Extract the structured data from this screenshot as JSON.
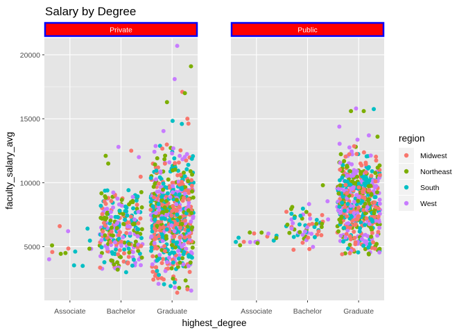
{
  "chart_data": {
    "type": "scatter",
    "title": "Salary by Degree",
    "xlabel": "highest_degree",
    "ylabel": "faculty_salary_avg",
    "categories": [
      "Associate",
      "Bachelor",
      "Graduate"
    ],
    "yticks": [
      "5000",
      "10000",
      "15000",
      "20000"
    ],
    "ylim": [
      800,
      21300
    ],
    "grid": true,
    "legend_title": "region",
    "legend_position": "right",
    "facet_fill": "#ff0000",
    "facet_border": "#0000ff",
    "panel_background": "#e5e5e5",
    "series": [
      {
        "name": "Midwest",
        "color": "#F8766D"
      },
      {
        "name": "Northeast",
        "color": "#7CAE00"
      },
      {
        "name": "South",
        "color": "#00BFC4"
      },
      {
        "name": "West",
        "color": "#C77CFF"
      }
    ],
    "facets": [
      {
        "label": "Private",
        "groups": [
          {
            "category": "Associate",
            "count": 12,
            "center": 5000,
            "spread": 700,
            "min": 3500,
            "max": 6600,
            "extremes": [
              [
                -0.2,
                6600,
                0
              ],
              [
                0.25,
                3500,
                2
              ],
              [
                -0.35,
                5100,
                1
              ]
            ]
          },
          {
            "category": "Bachelor",
            "count": 260,
            "center": 6500,
            "spread": 1700,
            "min": 3000,
            "max": 12800,
            "extremes": [
              [
                -0.3,
                12100,
                1
              ],
              [
                -0.05,
                12800,
                3
              ],
              [
                0.35,
                12000,
                3
              ],
              [
                0.2,
                12500,
                0
              ],
              [
                -0.25,
                11500,
                1
              ],
              [
                0.1,
                3000,
                2
              ]
            ]
          },
          {
            "category": "Graduate",
            "count": 620,
            "center": 7400,
            "spread": 2400,
            "min": 1400,
            "max": 20700,
            "extremes": [
              [
                0.1,
                20700,
                3
              ],
              [
                0.37,
                19100,
                1
              ],
              [
                0.05,
                18100,
                3
              ],
              [
                0.2,
                17100,
                0
              ],
              [
                -0.1,
                16300,
                1
              ],
              [
                0.1,
                1400,
                0
              ],
              [
                0.05,
                2200,
                2
              ],
              [
                0.25,
                17000,
                1
              ],
              [
                0.3,
                15000,
                0
              ]
            ]
          }
        ]
      },
      {
        "label": "Public",
        "groups": [
          {
            "category": "Associate",
            "count": 14,
            "center": 5600,
            "spread": 400,
            "min": 4800,
            "max": 6200,
            "extremes": [
              [
                -0.35,
                5700,
                2
              ],
              [
                0.1,
                6100,
                1
              ]
            ]
          },
          {
            "category": "Bachelor",
            "count": 60,
            "center": 6600,
            "spread": 900,
            "min": 4700,
            "max": 9800,
            "extremes": [
              [
                0.3,
                9800,
                1
              ],
              [
                -0.3,
                8100,
                1
              ]
            ]
          },
          {
            "category": "Graduate",
            "count": 560,
            "center": 8300,
            "spread": 1900,
            "min": 4400,
            "max": 15800,
            "extremes": [
              [
                -0.15,
                15600,
                1
              ],
              [
                -0.05,
                15800,
                3
              ],
              [
                0.1,
                15600,
                1
              ],
              [
                0.2,
                13700,
                3
              ],
              [
                0.37,
                13600,
                1
              ],
              [
                0.2,
                4400,
                1
              ]
            ]
          }
        ]
      }
    ]
  }
}
